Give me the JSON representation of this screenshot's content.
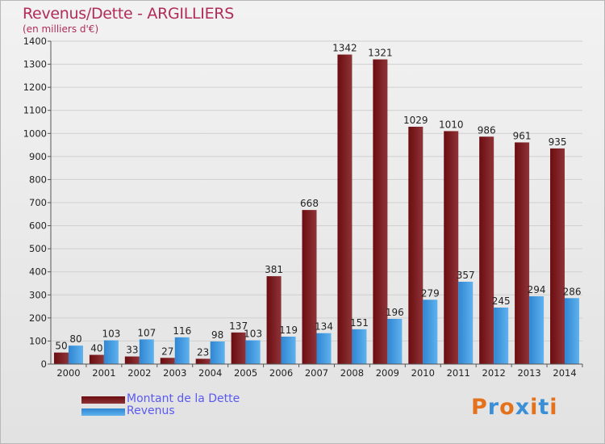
{
  "title": "Revenus/Dette - ARGILLIERS",
  "subtitle": "(en milliers d'€)",
  "logo": {
    "letters": [
      "P",
      "r",
      "o",
      "x",
      "i",
      "t",
      "i"
    ],
    "colors": [
      "#e4711c",
      "#3b8fd6",
      "#e4711c",
      "#3b8fd6",
      "#e4711c",
      "#3b8fd6",
      "#e4711c"
    ]
  },
  "colors": {
    "dette_dark": "#6b0c10",
    "dette_light": "#8e3438",
    "revenus_dark": "#2f86d2",
    "revenus_light": "#5fb2ee",
    "axis": "#555555",
    "grid": "#cfcfcf"
  },
  "chart_data": {
    "type": "bar",
    "title": "Revenus/Dette - ARGILLIERS",
    "subtitle": "(en milliers d'€)",
    "categories": [
      "2000",
      "2001",
      "2002",
      "2003",
      "2004",
      "2005",
      "2006",
      "2007",
      "2008",
      "2009",
      "2010",
      "2011",
      "2012",
      "2013",
      "2014"
    ],
    "series": [
      {
        "name": "Montant de la Dette",
        "values": [
          50,
          40,
          33,
          27,
          23,
          137,
          381,
          668,
          1342,
          1321,
          1029,
          1010,
          986,
          961,
          935
        ]
      },
      {
        "name": "Revenus",
        "values": [
          80,
          103,
          107,
          116,
          98,
          103,
          119,
          134,
          151,
          196,
          279,
          357,
          245,
          294,
          286
        ]
      }
    ],
    "ylim": [
      0,
      1400
    ],
    "yticks": [
      0,
      100,
      200,
      300,
      400,
      500,
      600,
      700,
      800,
      900,
      1000,
      1100,
      1200,
      1300,
      1400
    ],
    "grid": true,
    "legend_position": "bottom-left"
  }
}
